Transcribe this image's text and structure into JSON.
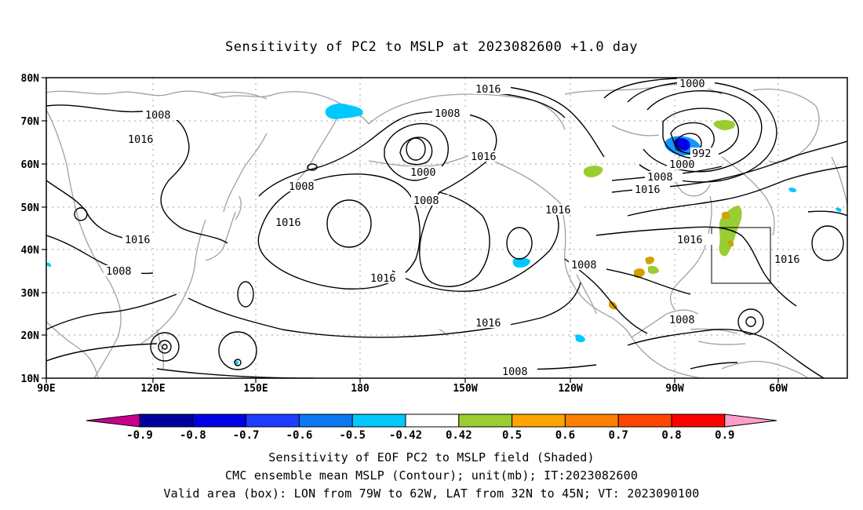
{
  "title": "Sensitivity of PC2 to MSLP at 2023082600 +1.0 day",
  "latitude_labels": [
    "80N",
    "70N",
    "60N",
    "50N",
    "40N",
    "30N",
    "20N",
    "10N"
  ],
  "longitude_labels": [
    "90E",
    "120E",
    "150E",
    "180",
    "150W",
    "120W",
    "90W",
    "60W"
  ],
  "contour_labels": {
    "l1016a": "1016",
    "l1000a": "1000",
    "l1008a": "1008",
    "l1008b": "1008",
    "l1016b": "1016",
    "l992": "992",
    "l1000b": "1000",
    "l1008c": "1008",
    "l1016c": "1016",
    "l1000c": "1000",
    "l1008d": "1008",
    "l1008e": "1008",
    "l1016d": "1016",
    "l1016e": "1016",
    "l1016f": "1016",
    "l1016g": "1016",
    "l1008f": "1008",
    "l1016h": "1016",
    "l1016i": "1016",
    "l1008g": "1008",
    "l1016j": "1016",
    "l1008h": "1008",
    "l1016k": "1016"
  },
  "colorbar": {
    "labels": [
      "-0.9",
      "-0.8",
      "-0.7",
      "-0.6",
      "-0.5",
      "-0.42",
      "0.42",
      "0.5",
      "0.6",
      "0.7",
      "0.8",
      "0.9"
    ],
    "colors": {
      "below": "#c8008c",
      "b1": "#0000a0",
      "b2": "#0000e6",
      "b3": "#1e3cff",
      "b4": "#0a78f0",
      "b5": "#1496ff",
      "b6": "#00c8ff",
      "b7": "#ffffff",
      "b8": "#9acd32",
      "b9": "#ffa500",
      "b10": "#ff7f00",
      "b11": "#ff4500",
      "b12": "#ff0000",
      "above": "#ff9ec8"
    }
  },
  "colors": {
    "coast": "#a0a0a0",
    "contour": "#000000",
    "grid": "#a0a0a0",
    "neg_shade": "#00c8ff",
    "neg_strong": "#0000e6",
    "pos_shade": "#9acd32",
    "pos_orange": "#d2a000"
  },
  "caption": {
    "line1": "Sensitivity of EOF PC2 to MSLP field (Shaded)",
    "line2": "CMC ensemble mean MSLP (Contour); unit(mb); IT:2023082600",
    "line3": "Valid area (box): LON from 79W to 62W, LAT from 32N to 45N; VT: 2023090100"
  }
}
